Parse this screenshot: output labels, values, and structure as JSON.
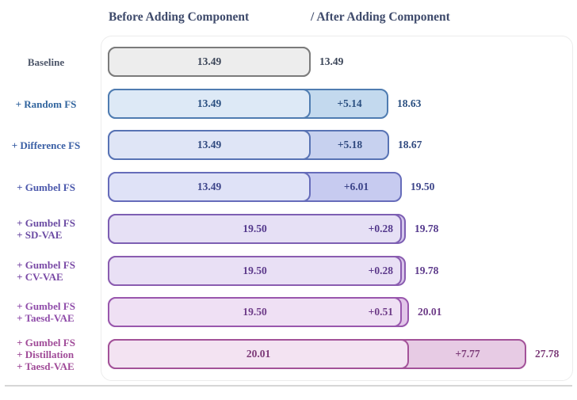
{
  "header": {
    "before_label": "Before Adding Component",
    "after_label": "/ After Adding Component"
  },
  "chart_data": {
    "type": "bar",
    "orientation": "horizontal",
    "title": "Before Adding Component / After Adding Component",
    "value_range": [
      0,
      27.78
    ],
    "legend": "bar split: lighter left segment = score before adding component, darker right segment = gain from component, number right of bar = score after",
    "rows": [
      {
        "label_lines": [
          "Baseline"
        ],
        "before": 13.49,
        "delta": null,
        "after": 13.49,
        "colors": {
          "label": "#4c5568",
          "border": "#7b7b7b",
          "fill_before": "#ededed",
          "fill_delta": "#ededed",
          "text": "#3c4659"
        }
      },
      {
        "label_lines": [
          "+ Random FS"
        ],
        "before": 13.49,
        "delta": 5.14,
        "after": 18.63,
        "colors": {
          "label": "#32659e",
          "border": "#4f7cb1",
          "fill_before": "#dde9f6",
          "fill_delta": "#c3d9ee",
          "text": "#2a4f80"
        }
      },
      {
        "label_lines": [
          "+ Difference FS"
        ],
        "before": 13.49,
        "delta": 5.18,
        "after": 18.67,
        "colors": {
          "label": "#3a5fa5",
          "border": "#5873b4",
          "fill_before": "#dfe5f6",
          "fill_delta": "#c7d1ef",
          "text": "#30497f"
        }
      },
      {
        "label_lines": [
          "+ Gumbel FS"
        ],
        "before": 13.49,
        "delta": 6.01,
        "after": 19.5,
        "colors": {
          "label": "#4a57ab",
          "border": "#666cba",
          "fill_before": "#dfe2f7",
          "fill_delta": "#c7cbf0",
          "text": "#3c4489"
        }
      },
      {
        "label_lines": [
          "+ Gumbel FS",
          "+ SD-VAE"
        ],
        "before": 19.5,
        "delta": 0.28,
        "after": 19.78,
        "colors": {
          "label": "#6b4ba3",
          "border": "#7d5fb3",
          "fill_before": "#e6e0f5",
          "fill_delta": "#d5c8ec",
          "text": "#53388c"
        }
      },
      {
        "label_lines": [
          "+ Gumbel FS",
          "+ CV-VAE"
        ],
        "before": 19.5,
        "delta": 0.28,
        "after": 19.78,
        "colors": {
          "label": "#7a4aa6",
          "border": "#8a5cb0",
          "fill_before": "#e9e0f5",
          "fill_delta": "#dac6ea",
          "text": "#5d3a8b"
        }
      },
      {
        "label_lines": [
          "+ Gumbel FS",
          "+ Taesd-VAE"
        ],
        "before": 19.5,
        "delta": 0.51,
        "after": 20.01,
        "colors": {
          "label": "#8f4ca9",
          "border": "#9957ad",
          "fill_before": "#efe0f4",
          "fill_delta": "#e2c5e9",
          "text": "#6e3c88"
        }
      },
      {
        "label_lines": [
          "+ Gumbel FS",
          "+ Distillation",
          "+ Taesd-VAE"
        ],
        "before": 20.01,
        "delta": 7.77,
        "after": 27.78,
        "colors": {
          "label": "#a04b98",
          "border": "#a35299",
          "fill_before": "#f3e3f2",
          "fill_delta": "#e7cbe4",
          "text": "#7c3a78"
        }
      }
    ]
  }
}
